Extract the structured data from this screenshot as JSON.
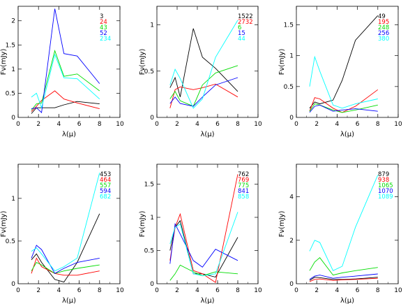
{
  "chart_data": [
    {
      "type": "line",
      "xlabel": "λ(μ)",
      "ylabel": "Fν(mJy)",
      "xlim": [
        0,
        10
      ],
      "ylim": [
        0,
        2.3
      ],
      "xticks": [
        0,
        2,
        4,
        6,
        8,
        10
      ],
      "yticks": [
        0.5,
        1,
        1.5,
        2
      ],
      "legend_placement": "top-right",
      "series": [
        {
          "name": "3",
          "color": "#000000",
          "x": [
            1.3,
            1.8,
            3.6,
            4.5,
            5.8,
            8.0
          ],
          "y": [
            0.08,
            0.2,
            0.2,
            0.26,
            0.33,
            0.28
          ]
        },
        {
          "name": "24",
          "color": "#ff0000",
          "x": [
            1.3,
            1.8,
            2.3,
            3.6,
            4.5,
            5.8,
            8.0
          ],
          "y": [
            0.12,
            0.23,
            0.35,
            0.55,
            0.38,
            0.3,
            0.18
          ]
        },
        {
          "name": "43",
          "color": "#00dd00",
          "x": [
            1.3,
            1.8,
            2.3,
            3.6,
            4.5,
            5.8,
            8.0
          ],
          "y": [
            0.15,
            0.28,
            0.3,
            1.38,
            0.85,
            0.9,
            0.55
          ]
        },
        {
          "name": "52",
          "color": "#0000ff",
          "x": [
            1.3,
            1.8,
            2.3,
            3.6,
            4.5,
            5.8,
            8.0
          ],
          "y": [
            0.18,
            0.2,
            0.1,
            2.25,
            1.32,
            1.27,
            0.7
          ]
        },
        {
          "name": "234",
          "color": "#00ffff",
          "x": [
            1.3,
            1.8,
            2.3,
            3.6,
            4.5,
            5.8,
            8.0
          ],
          "y": [
            0.42,
            0.5,
            0.2,
            1.3,
            0.82,
            0.8,
            0.38
          ]
        }
      ]
    },
    {
      "type": "line",
      "xlabel": "λ(μ)",
      "ylabel": "Fν(mJy)",
      "xlim": [
        0,
        10
      ],
      "ylim": [
        0,
        1.2
      ],
      "xticks": [
        0,
        2,
        4,
        6,
        8,
        10
      ],
      "yticks": [
        0.5,
        1
      ],
      "legend_placement": "top-right",
      "series": [
        {
          "name": "1522",
          "color": "#000000",
          "x": [
            1.3,
            1.8,
            2.3,
            3.6,
            4.5,
            5.8,
            8.0
          ],
          "y": [
            0.32,
            0.43,
            0.22,
            0.96,
            0.65,
            0.53,
            0.28
          ]
        },
        {
          "name": "2732",
          "color": "#ff0000",
          "x": [
            1.3,
            1.8,
            2.3,
            3.6,
            4.5,
            5.8,
            8.0
          ],
          "y": [
            0.1,
            0.3,
            0.33,
            0.3,
            0.32,
            0.36,
            0.22
          ]
        },
        {
          "name": "6",
          "color": "#00dd00",
          "x": [
            1.3,
            1.8,
            2.3,
            3.6,
            4.5,
            5.8,
            8.0
          ],
          "y": [
            0.2,
            0.28,
            0.18,
            0.12,
            0.35,
            0.48,
            0.56
          ]
        },
        {
          "name": "15",
          "color": "#0000ff",
          "x": [
            1.3,
            1.8,
            2.3,
            3.6,
            4.5,
            5.8,
            8.0
          ],
          "y": [
            0.15,
            0.22,
            0.15,
            0.12,
            0.22,
            0.35,
            0.43
          ]
        },
        {
          "name": "44",
          "color": "#00ffff",
          "x": [
            1.3,
            1.8,
            2.3,
            3.6,
            4.5,
            5.8,
            8.0
          ],
          "y": [
            0.35,
            0.52,
            0.42,
            0.1,
            0.2,
            0.65,
            1.05
          ]
        }
      ]
    },
    {
      "type": "line",
      "xlabel": "λ(μ)",
      "ylabel": "Fν(mJy)",
      "xlim": [
        0,
        10
      ],
      "ylim": [
        0,
        1.8
      ],
      "xticks": [
        0,
        2,
        4,
        6,
        8,
        10
      ],
      "yticks": [
        0.5,
        1,
        1.5
      ],
      "legend_placement": "top-right",
      "series": [
        {
          "name": "49",
          "color": "#000000",
          "x": [
            1.3,
            1.8,
            2.3,
            3.6,
            4.5,
            5.8,
            8.0
          ],
          "y": [
            0.15,
            0.25,
            0.22,
            0.28,
            0.6,
            1.25,
            1.65
          ]
        },
        {
          "name": "195",
          "color": "#ff0000",
          "x": [
            1.3,
            1.8,
            2.3,
            3.6,
            4.5,
            5.8,
            8.0
          ],
          "y": [
            0.1,
            0.32,
            0.3,
            0.15,
            0.08,
            0.18,
            0.45
          ]
        },
        {
          "name": "248",
          "color": "#00dd00",
          "x": [
            1.3,
            1.8,
            2.3,
            3.6,
            4.5,
            5.8,
            8.0
          ],
          "y": [
            0.1,
            0.22,
            0.2,
            0.12,
            0.08,
            0.12,
            0.2
          ]
        },
        {
          "name": "256",
          "color": "#0000ff",
          "x": [
            1.3,
            1.8,
            2.3,
            3.6,
            4.5,
            5.8,
            8.0
          ],
          "y": [
            0.08,
            0.18,
            0.2,
            0.1,
            0.12,
            0.14,
            0.1
          ]
        },
        {
          "name": "380",
          "color": "#00ffff",
          "x": [
            1.3,
            1.8,
            2.3,
            3.6,
            4.5,
            5.8,
            8.0
          ],
          "y": [
            0.5,
            0.98,
            0.75,
            0.2,
            0.15,
            0.22,
            0.3
          ]
        }
      ]
    },
    {
      "type": "line",
      "xlabel": "λ(μ)",
      "ylabel": "Fν(mJy)",
      "xlim": [
        0,
        10
      ],
      "ylim": [
        0,
        1.4
      ],
      "xticks": [
        0,
        2,
        4,
        6,
        8,
        10
      ],
      "yticks": [
        0.5,
        1
      ],
      "legend_placement": "top-right",
      "series": [
        {
          "name": "453",
          "color": "#000000",
          "x": [
            1.3,
            1.8,
            2.3,
            3.6,
            4.5,
            5.8,
            8.0
          ],
          "y": [
            0.28,
            0.35,
            0.25,
            0.05,
            0.02,
            0.25,
            0.82
          ]
        },
        {
          "name": "464",
          "color": "#ff0000",
          "x": [
            1.3,
            1.8,
            2.3,
            3.6,
            4.5,
            5.8,
            8.0
          ],
          "y": [
            0.12,
            0.3,
            0.2,
            0.12,
            0.1,
            0.1,
            0.15
          ]
        },
        {
          "name": "557",
          "color": "#00dd00",
          "x": [
            1.3,
            1.8,
            2.3,
            3.6,
            4.5,
            5.8,
            8.0
          ],
          "y": [
            0.15,
            0.25,
            0.22,
            0.12,
            0.15,
            0.18,
            0.22
          ]
        },
        {
          "name": "594",
          "color": "#0000ff",
          "x": [
            1.3,
            1.8,
            2.3,
            3.6,
            4.5,
            5.8,
            8.0
          ],
          "y": [
            0.3,
            0.45,
            0.4,
            0.12,
            0.18,
            0.25,
            0.3
          ]
        },
        {
          "name": "682",
          "color": "#00ffff",
          "x": [
            1.3,
            1.8,
            2.3,
            3.6,
            4.5,
            5.8,
            8.0
          ],
          "y": [
            0.38,
            0.42,
            0.35,
            0.15,
            0.2,
            0.3,
            1.3
          ]
        }
      ]
    },
    {
      "type": "line",
      "xlabel": "λ(μ)",
      "ylabel": "Fν(mJy)",
      "xlim": [
        0,
        10
      ],
      "ylim": [
        0,
        1.8
      ],
      "xticks": [
        0,
        2,
        4,
        6,
        8,
        10
      ],
      "yticks": [
        0.5,
        1,
        1.5
      ],
      "legend_placement": "top-right",
      "series": [
        {
          "name": "762",
          "color": "#000000",
          "x": [
            1.3,
            1.8,
            2.3,
            3.6,
            4.5,
            5.8,
            8.0
          ],
          "y": [
            0.5,
            0.85,
            0.95,
            0.15,
            0.15,
            0.1,
            0.7
          ]
        },
        {
          "name": "769",
          "color": "#ff0000",
          "x": [
            1.3,
            1.8,
            2.3,
            3.6,
            4.5,
            5.8,
            8.0
          ],
          "y": [
            0.35,
            0.85,
            1.05,
            0.2,
            0.15,
            0.02,
            1.65
          ]
        },
        {
          "name": "775",
          "color": "#00dd00",
          "x": [
            1.3,
            1.8,
            2.3,
            3.6,
            4.5,
            5.8,
            8.0
          ],
          "y": [
            0.05,
            0.15,
            0.28,
            0.18,
            0.12,
            0.18,
            0.15
          ]
        },
        {
          "name": "841",
          "color": "#0000ff",
          "x": [
            1.3,
            1.8,
            2.3,
            3.6,
            4.5,
            5.8,
            8.0
          ],
          "y": [
            0.3,
            0.9,
            0.75,
            0.35,
            0.25,
            0.52,
            0.35
          ]
        },
        {
          "name": "858",
          "color": "#00ffff",
          "x": [
            1.3,
            1.8,
            2.3,
            3.6,
            4.5,
            5.8,
            8.0
          ],
          "y": [
            0.6,
            0.85,
            0.9,
            0.15,
            0.12,
            0.15,
            1.08
          ]
        }
      ]
    },
    {
      "type": "line",
      "xlabel": "λ(μ)",
      "ylabel": "Fν(mJy)",
      "xlim": [
        0,
        10
      ],
      "ylim": [
        0,
        5.5
      ],
      "xticks": [
        0,
        2,
        4,
        6,
        8,
        10
      ],
      "yticks": [
        2,
        4
      ],
      "legend_placement": "top-right",
      "series": [
        {
          "name": "879",
          "color": "#000000",
          "x": [
            1.3,
            1.8,
            2.3,
            3.6,
            4.5,
            5.8,
            8.0
          ],
          "y": [
            0.15,
            0.3,
            0.28,
            0.2,
            0.2,
            0.22,
            0.3
          ]
        },
        {
          "name": "938",
          "color": "#ff0000",
          "x": [
            1.3,
            1.8,
            2.3,
            3.6,
            4.5,
            5.8,
            8.0
          ],
          "y": [
            0.1,
            0.2,
            0.22,
            0.15,
            0.18,
            0.2,
            0.25
          ]
        },
        {
          "name": "1065",
          "color": "#00dd00",
          "x": [
            1.3,
            1.8,
            2.3,
            3.6,
            4.5,
            5.8,
            8.0
          ],
          "y": [
            0.6,
            1.0,
            1.2,
            0.4,
            0.5,
            0.6,
            0.75
          ]
        },
        {
          "name": "1070",
          "color": "#0000ff",
          "x": [
            1.3,
            1.8,
            2.3,
            3.6,
            4.5,
            5.8,
            8.0
          ],
          "y": [
            0.2,
            0.35,
            0.4,
            0.25,
            0.3,
            0.35,
            0.45
          ]
        },
        {
          "name": "1089",
          "color": "#00ffff",
          "x": [
            1.3,
            1.8,
            2.3,
            3.6,
            4.5,
            5.8,
            8.0
          ],
          "y": [
            1.5,
            2.0,
            1.9,
            0.6,
            0.8,
            2.6,
            5.0
          ]
        }
      ]
    }
  ]
}
